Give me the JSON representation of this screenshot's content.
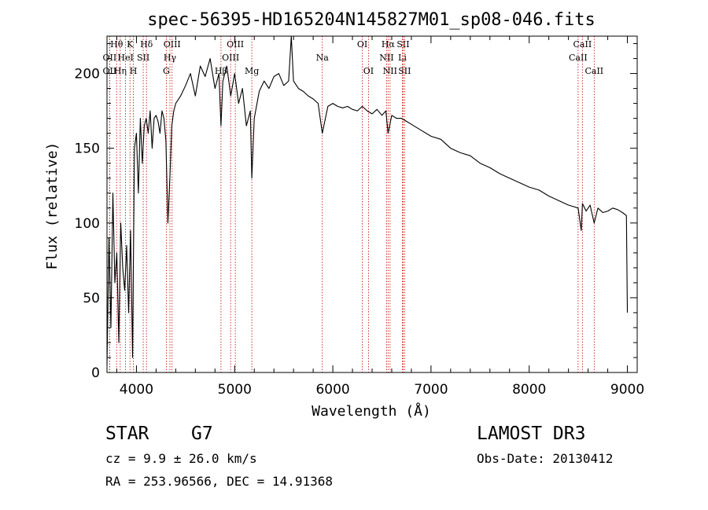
{
  "chart_data": {
    "type": "line",
    "title": "spec-56395-HD165204N145827M01_sp08-046.fits",
    "xlabel": "Wavelength (Å)",
    "ylabel": "Flux (relative)",
    "xlim": [
      3700,
      9100
    ],
    "ylim": [
      0,
      225
    ],
    "xticks": [
      4000,
      5000,
      6000,
      7000,
      8000,
      9000
    ],
    "yticks": [
      0,
      50,
      100,
      150,
      200
    ],
    "series": [
      {
        "name": "spectrum",
        "x": [
          3700,
          3720,
          3740,
          3760,
          3780,
          3800,
          3820,
          3840,
          3860,
          3880,
          3900,
          3920,
          3940,
          3960,
          3980,
          4000,
          4020,
          4040,
          4060,
          4080,
          4100,
          4120,
          4140,
          4160,
          4180,
          4200,
          4220,
          4240,
          4260,
          4280,
          4300,
          4320,
          4340,
          4360,
          4380,
          4400,
          4450,
          4500,
          4550,
          4600,
          4650,
          4700,
          4750,
          4800,
          4840,
          4861,
          4880,
          4920,
          4960,
          5000,
          5040,
          5080,
          5120,
          5160,
          5175,
          5200,
          5250,
          5300,
          5350,
          5400,
          5450,
          5500,
          5550,
          5577,
          5600,
          5650,
          5700,
          5750,
          5800,
          5850,
          5893,
          5950,
          6000,
          6050,
          6100,
          6150,
          6200,
          6250,
          6300,
          6350,
          6400,
          6450,
          6500,
          6540,
          6563,
          6600,
          6650,
          6700,
          6750,
          6800,
          6900,
          7000,
          7100,
          7200,
          7300,
          7400,
          7500,
          7600,
          7700,
          7800,
          7900,
          8000,
          8100,
          8200,
          8300,
          8400,
          8450,
          8498,
          8530,
          8542,
          8580,
          8620,
          8662,
          8700,
          8750,
          8800,
          8850,
          8900,
          8950,
          8990,
          9000
        ],
        "y": [
          5,
          90,
          30,
          120,
          60,
          80,
          20,
          100,
          70,
          55,
          85,
          40,
          95,
          10,
          150,
          160,
          120,
          170,
          140,
          165,
          170,
          160,
          175,
          150,
          170,
          172,
          168,
          160,
          175,
          170,
          155,
          100,
          130,
          165,
          175,
          180,
          185,
          192,
          200,
          185,
          205,
          198,
          210,
          190,
          200,
          165,
          195,
          205,
          185,
          200,
          180,
          190,
          165,
          175,
          130,
          170,
          188,
          195,
          190,
          198,
          200,
          192,
          195,
          225,
          195,
          190,
          188,
          185,
          183,
          180,
          160,
          178,
          180,
          178,
          177,
          178,
          176,
          175,
          178,
          175,
          173,
          176,
          172,
          175,
          160,
          172,
          170,
          170,
          168,
          166,
          162,
          158,
          156,
          150,
          147,
          145,
          140,
          137,
          133,
          130,
          127,
          124,
          122,
          118,
          115,
          112,
          111,
          110,
          95,
          113,
          108,
          112,
          100,
          110,
          107,
          108,
          110,
          109,
          107,
          105,
          40
        ]
      }
    ],
    "line_markers": [
      {
        "label": "Hθ",
        "x": 3798,
        "row": 1
      },
      {
        "label": "OII",
        "x": 3727,
        "row": 2
      },
      {
        "label": "OII",
        "x": 3727,
        "row": 3
      },
      {
        "label": "Hη",
        "x": 3835,
        "row": 3
      },
      {
        "label": "K",
        "x": 3934,
        "row": 1
      },
      {
        "label": "HeI",
        "x": 3889,
        "row": 2
      },
      {
        "label": "H",
        "x": 3969,
        "row": 3
      },
      {
        "label": "Hδ",
        "x": 4102,
        "row": 1
      },
      {
        "label": "SII",
        "x": 4069,
        "row": 2
      },
      {
        "label": "OIII",
        "x": 4363,
        "row": 1
      },
      {
        "label": "Hγ",
        "x": 4341,
        "row": 2
      },
      {
        "label": "G",
        "x": 4304,
        "row": 3
      },
      {
        "label": "OIII",
        "x": 5007,
        "row": 1
      },
      {
        "label": "OIII",
        "x": 4959,
        "row": 2
      },
      {
        "label": "Hβ",
        "x": 4861,
        "row": 3
      },
      {
        "label": "Mg",
        "x": 5175,
        "row": 3
      },
      {
        "label": "Na",
        "x": 5893,
        "row": 2
      },
      {
        "label": "OI",
        "x": 6300,
        "row": 1
      },
      {
        "label": "OI",
        "x": 6363,
        "row": 3
      },
      {
        "label": "Hα",
        "x": 6563,
        "row": 1
      },
      {
        "label": "NII",
        "x": 6548,
        "row": 2
      },
      {
        "label": "NII",
        "x": 6583,
        "row": 3
      },
      {
        "label": "SII",
        "x": 6716,
        "row": 1
      },
      {
        "label": "Li",
        "x": 6708,
        "row": 2
      },
      {
        "label": "SII",
        "x": 6731,
        "row": 3
      },
      {
        "label": "CaII",
        "x": 8542,
        "row": 1
      },
      {
        "label": "CaII",
        "x": 8498,
        "row": 2
      },
      {
        "label": "CaII",
        "x": 8662,
        "row": 3
      }
    ]
  },
  "info": {
    "object_type": "STAR",
    "subclass": "G7",
    "redshift": "cz = 9.9 ± 26.0 km/s",
    "coords": "RA = 253.96566, DEC =  14.91368",
    "survey": "LAMOST DR3",
    "obs_date": "Obs-Date: 20130412"
  },
  "colors": {
    "line": "#000000",
    "marker": "#c00000",
    "axis": "#000000"
  }
}
